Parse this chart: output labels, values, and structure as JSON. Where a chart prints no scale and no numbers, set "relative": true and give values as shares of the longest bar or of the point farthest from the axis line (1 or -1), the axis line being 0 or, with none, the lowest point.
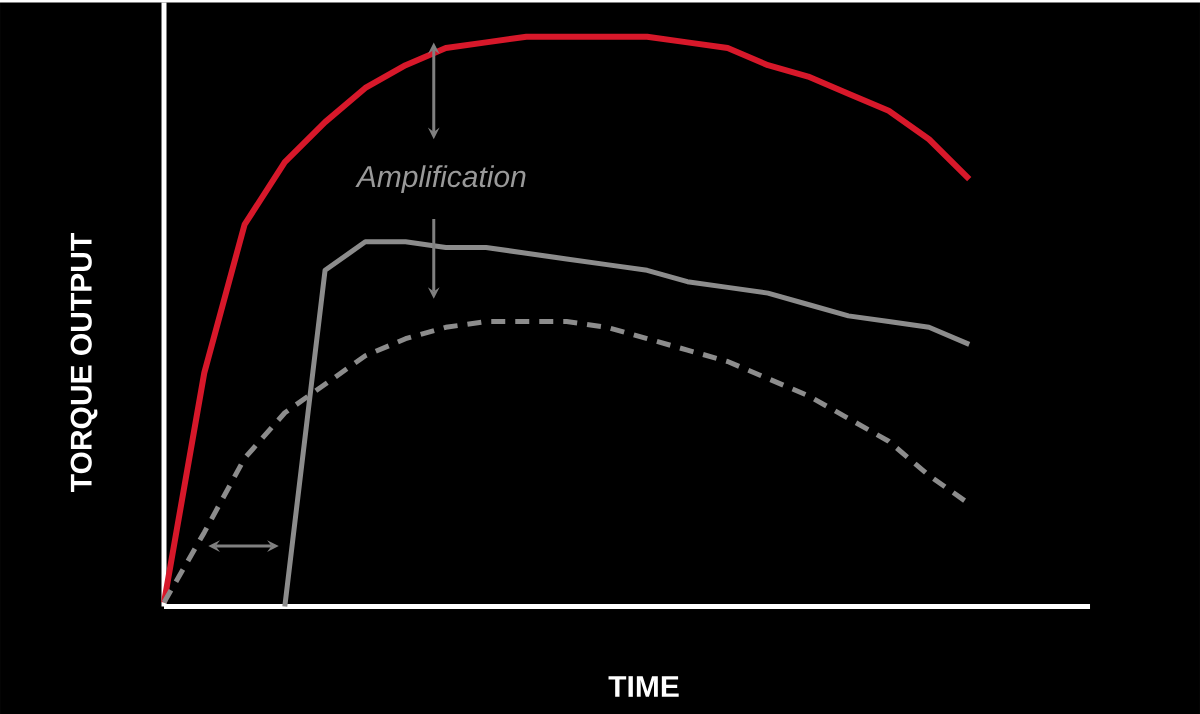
{
  "chart_data": {
    "type": "line",
    "relative": true,
    "xlabel": "TIME",
    "ylabel": "TORQUE OUTPUT",
    "annotations": [
      "Amplification"
    ],
    "marker": "none",
    "categories": [
      null,
      null,
      null,
      null,
      null,
      null,
      null,
      null,
      null,
      null,
      null,
      null,
      null,
      null,
      null,
      null,
      null,
      null,
      null,
      null,
      null,
      null,
      null,
      null
    ],
    "series": [
      {
        "color": "#d7182a",
        "line_style": "solid",
        "values": [
          0.007,
          0.41,
          0.67,
          0.78,
          0.85,
          0.91,
          0.95,
          0.98,
          0.99,
          1.0,
          1.0,
          1.0,
          1.0,
          0.99,
          0.98,
          0.95,
          0.93,
          0.9,
          0.87,
          0.82,
          0.75,
          null,
          null,
          null
        ]
      },
      {
        "color": "#8c8c8c",
        "line_style": "solid",
        "values": [
          null,
          null,
          null,
          0,
          0.59,
          0.64,
          0.64,
          0.63,
          0.63,
          0.62,
          0.61,
          0.6,
          0.59,
          0.57,
          0.56,
          0.55,
          0.53,
          0.51,
          0.5,
          0.49,
          0.46,
          null,
          null,
          null
        ]
      },
      {
        "color": "#8c8c8c",
        "line_style": "dashed",
        "values": [
          0.007,
          0.13,
          0.26,
          0.34,
          0.39,
          0.44,
          0.47,
          0.49,
          0.5,
          0.5,
          0.5,
          0.49,
          0.47,
          0.45,
          0.43,
          0.4,
          0.37,
          0.33,
          0.29,
          0.23,
          0.18,
          null,
          null,
          null
        ]
      }
    ]
  }
}
